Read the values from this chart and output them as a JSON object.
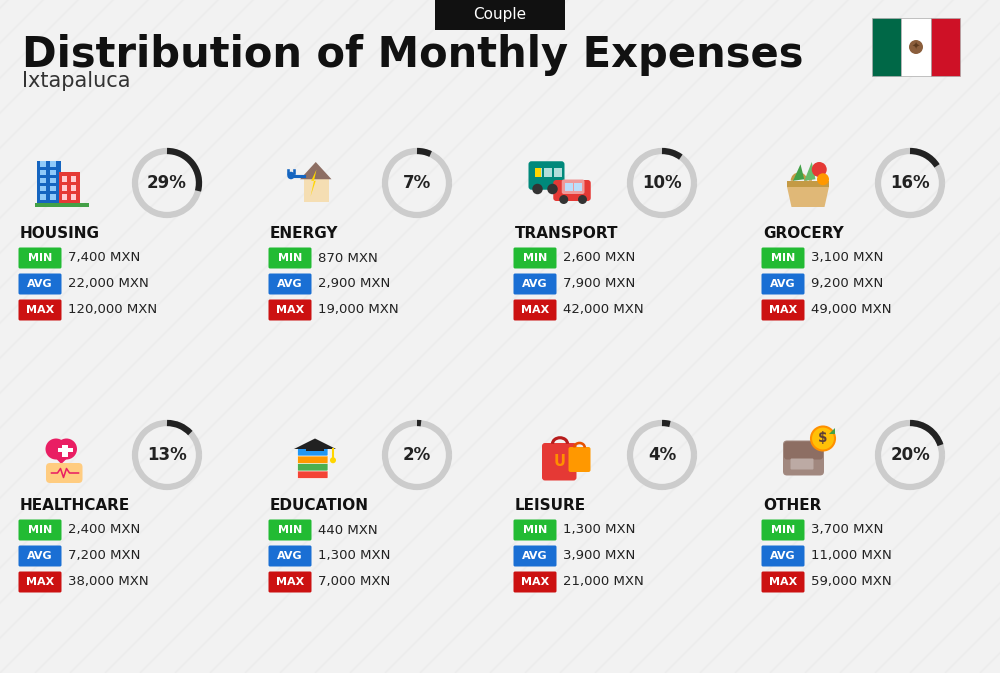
{
  "title": "Distribution of Monthly Expenses",
  "subtitle": "Ixtapaluca",
  "badge": "Couple",
  "bg_color": "#f2f2f2",
  "categories": [
    {
      "name": "HOUSING",
      "pct": 29,
      "min": "7,400 MXN",
      "avg": "22,000 MXN",
      "max": "120,000 MXN",
      "row": 0,
      "col": 0
    },
    {
      "name": "ENERGY",
      "pct": 7,
      "min": "870 MXN",
      "avg": "2,900 MXN",
      "max": "19,000 MXN",
      "row": 0,
      "col": 1
    },
    {
      "name": "TRANSPORT",
      "pct": 10,
      "min": "2,600 MXN",
      "avg": "7,900 MXN",
      "max": "42,000 MXN",
      "row": 0,
      "col": 2
    },
    {
      "name": "GROCERY",
      "pct": 16,
      "min": "3,100 MXN",
      "avg": "9,200 MXN",
      "max": "49,000 MXN",
      "row": 0,
      "col": 3
    },
    {
      "name": "HEALTHCARE",
      "pct": 13,
      "min": "2,400 MXN",
      "avg": "7,200 MXN",
      "max": "38,000 MXN",
      "row": 1,
      "col": 0
    },
    {
      "name": "EDUCATION",
      "pct": 2,
      "min": "440 MXN",
      "avg": "1,300 MXN",
      "max": "7,000 MXN",
      "row": 1,
      "col": 1
    },
    {
      "name": "LEISURE",
      "pct": 4,
      "min": "1,300 MXN",
      "avg": "3,900 MXN",
      "max": "21,000 MXN",
      "row": 1,
      "col": 2
    },
    {
      "name": "OTHER",
      "pct": 20,
      "min": "3,700 MXN",
      "avg": "11,000 MXN",
      "max": "59,000 MXN",
      "row": 1,
      "col": 3
    }
  ],
  "min_color": "#22bb33",
  "avg_color": "#1a6fd4",
  "max_color": "#cc1111",
  "donut_filled_color": "#222222",
  "donut_empty_color": "#cccccc",
  "stripe_color": "#e8e8e8",
  "flag_green": "#006847",
  "flag_white": "#ffffff",
  "flag_red": "#ce1126"
}
